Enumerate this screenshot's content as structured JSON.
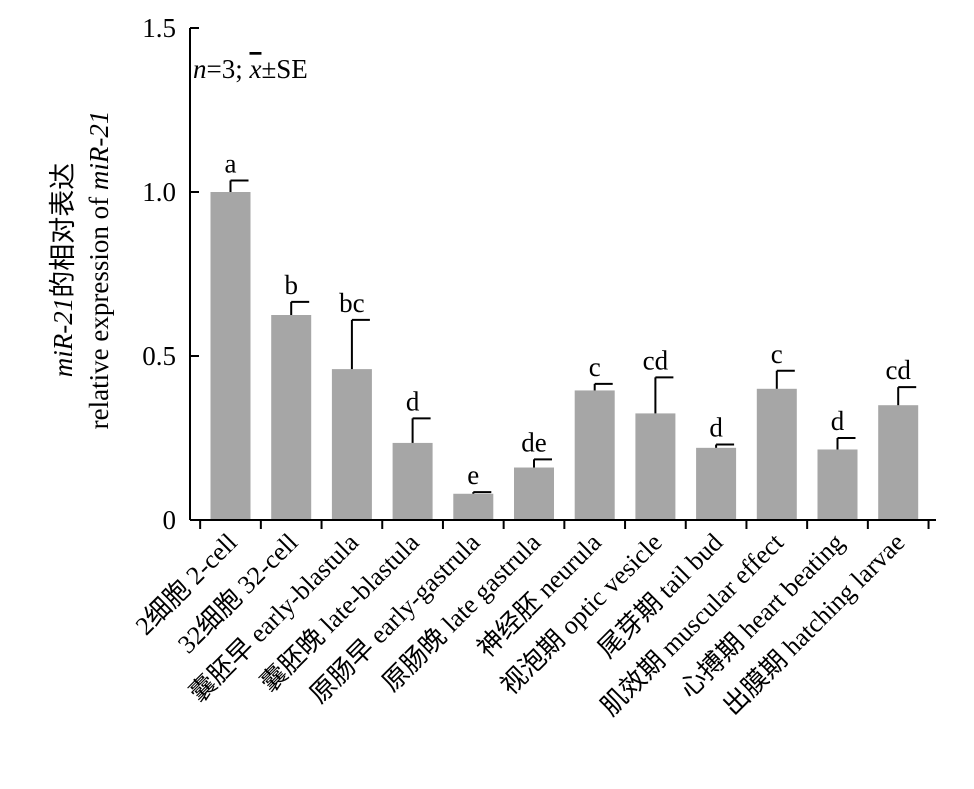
{
  "chart_data": {
    "type": "bar",
    "annotation": {
      "n_label": "n",
      "n_value": "=3; ",
      "mean_label": "x",
      "pm": "±SE"
    },
    "ylabel_line1_italic": "miR-21",
    "ylabel_line1_rest": "的相对表达",
    "ylabel_line2_prefix": "relative expression of ",
    "ylabel_line2_italic": "miR-21",
    "ylim": [
      0,
      1.5
    ],
    "yticks": [
      {
        "value": 0,
        "label": "0"
      },
      {
        "value": 0.5,
        "label": "0.5"
      },
      {
        "value": 1.0,
        "label": "1.0"
      },
      {
        "value": 1.5,
        "label": "1.5"
      }
    ],
    "categories": [
      "2细胞 2-cell",
      "32细胞 32-cell",
      "囊胚早 early-blastula",
      "囊胚晚 late-blastula",
      "原肠早 early-gastrula",
      "原肠晚 late gastrula",
      "神经胚 neurula",
      "视泡期 optic vesicle",
      "尾芽期 tail bud",
      "肌效期 muscular effect",
      "心搏期 heart beating",
      "出膜期 hatching larvae"
    ],
    "values": [
      1.0,
      0.625,
      0.46,
      0.235,
      0.08,
      0.16,
      0.395,
      0.325,
      0.22,
      0.4,
      0.215,
      0.35
    ],
    "errors": [
      0.035,
      0.04,
      0.15,
      0.075,
      0.005,
      0.025,
      0.02,
      0.11,
      0.01,
      0.055,
      0.035,
      0.055
    ],
    "significance": [
      "a",
      "b",
      "bc",
      "d",
      "e",
      "de",
      "c",
      "cd",
      "d",
      "c",
      "d",
      "cd"
    ],
    "bar_color": "#a6a6a6",
    "grid": false
  }
}
